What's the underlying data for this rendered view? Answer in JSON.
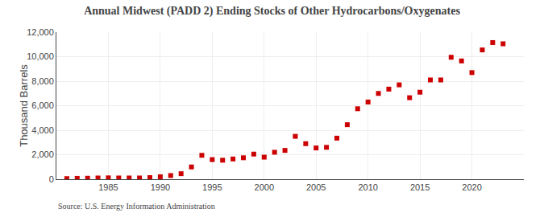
{
  "chart_data": {
    "type": "scatter",
    "title": "Annual Midwest (PADD 2) Ending Stocks of Other Hydrocarbons/Oxygenates",
    "ylabel": "Thousand Barrels",
    "annotations": [
      "Source: U.S. Energy Information Administration"
    ],
    "x": [
      1981,
      1982,
      1983,
      1984,
      1985,
      1986,
      1987,
      1988,
      1989,
      1990,
      1991,
      1992,
      1993,
      1994,
      1995,
      1996,
      1997,
      1998,
      1999,
      2000,
      2001,
      2002,
      2003,
      2004,
      2005,
      2006,
      2007,
      2008,
      2009,
      2010,
      2011,
      2012,
      2013,
      2014,
      2015,
      2016,
      2017,
      2018,
      2019,
      2020,
      2021,
      2022,
      2023
    ],
    "values": [
      50,
      70,
      80,
      100,
      110,
      100,
      100,
      100,
      130,
      200,
      300,
      450,
      1000,
      1950,
      1600,
      1550,
      1650,
      1750,
      2050,
      1800,
      2200,
      2350,
      3500,
      2900,
      2550,
      2600,
      3350,
      4450,
      5750,
      6300,
      7000,
      7350,
      7700,
      6650,
      7100,
      8100,
      8100,
      9950,
      9650,
      8700,
      10550,
      11150,
      11050
    ],
    "color": "#cc0000",
    "marker": "square",
    "xlim": [
      1980,
      2025
    ],
    "ylim": [
      0,
      12000
    ],
    "xticks": [
      1985,
      1990,
      1995,
      2000,
      2005,
      2010,
      2015,
      2020
    ],
    "yticks": [
      0,
      {
        "value": 2000,
        "label": "2,000"
      },
      {
        "value": 4000,
        "label": "4,000"
      },
      {
        "value": 6000,
        "label": "6,000"
      },
      {
        "value": 8000,
        "label": "8,000"
      },
      {
        "value": 10000,
        "label": "10,000"
      },
      {
        "value": 12000,
        "label": "12,000"
      }
    ],
    "grid": true
  }
}
